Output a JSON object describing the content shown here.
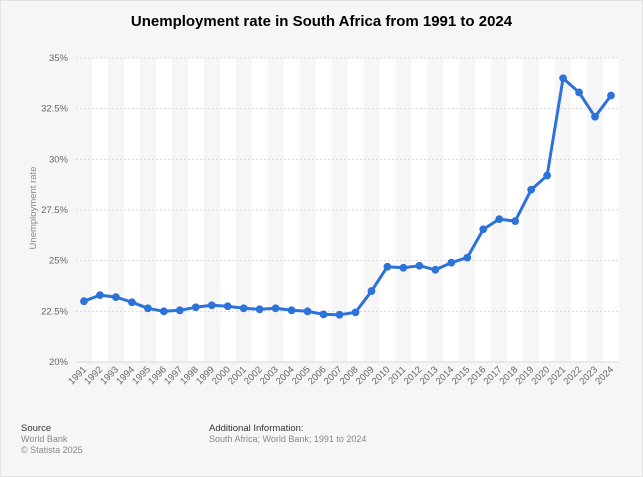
{
  "chart_data": {
    "type": "line",
    "title": "Unemployment rate in South Africa from 1991 to 2024",
    "ylabel": "Unemployment rate",
    "xlabel": "",
    "ylim": [
      20,
      35
    ],
    "y_ticks": [
      20,
      22.5,
      25,
      27.5,
      30,
      32.5,
      35
    ],
    "y_tick_labels": [
      "20%",
      "22.5%",
      "25%",
      "27.5%",
      "30%",
      "32.5%",
      "35%"
    ],
    "grid": true,
    "line_color": "#2d72d9",
    "x": [
      "1991",
      "1992",
      "1993",
      "1994",
      "1995",
      "1996",
      "1997",
      "1998",
      "1999",
      "2000",
      "2001",
      "2002",
      "2003",
      "2004",
      "2005",
      "2006",
      "2007",
      "2008",
      "2009",
      "2010",
      "2011",
      "2012",
      "2013",
      "2014",
      "2015",
      "2016",
      "2017",
      "2018",
      "2019",
      "2020",
      "2021",
      "2022",
      "2023",
      "2024"
    ],
    "values": [
      23.0,
      23.3,
      23.2,
      22.95,
      22.65,
      22.5,
      22.55,
      22.7,
      22.8,
      22.75,
      22.65,
      22.6,
      22.65,
      22.55,
      22.5,
      22.35,
      22.33,
      22.45,
      23.5,
      24.7,
      24.65,
      24.75,
      24.55,
      24.9,
      25.15,
      26.55,
      27.05,
      26.95,
      28.5,
      29.2,
      34.0,
      33.3,
      32.1,
      33.15
    ]
  },
  "footer": {
    "source_heading": "Source",
    "source_line1": "World Bank",
    "source_line2": "© Statista 2025",
    "info_heading": "Additional Information:",
    "info_line": "South Africa; World Bank; 1991 to 2024"
  }
}
